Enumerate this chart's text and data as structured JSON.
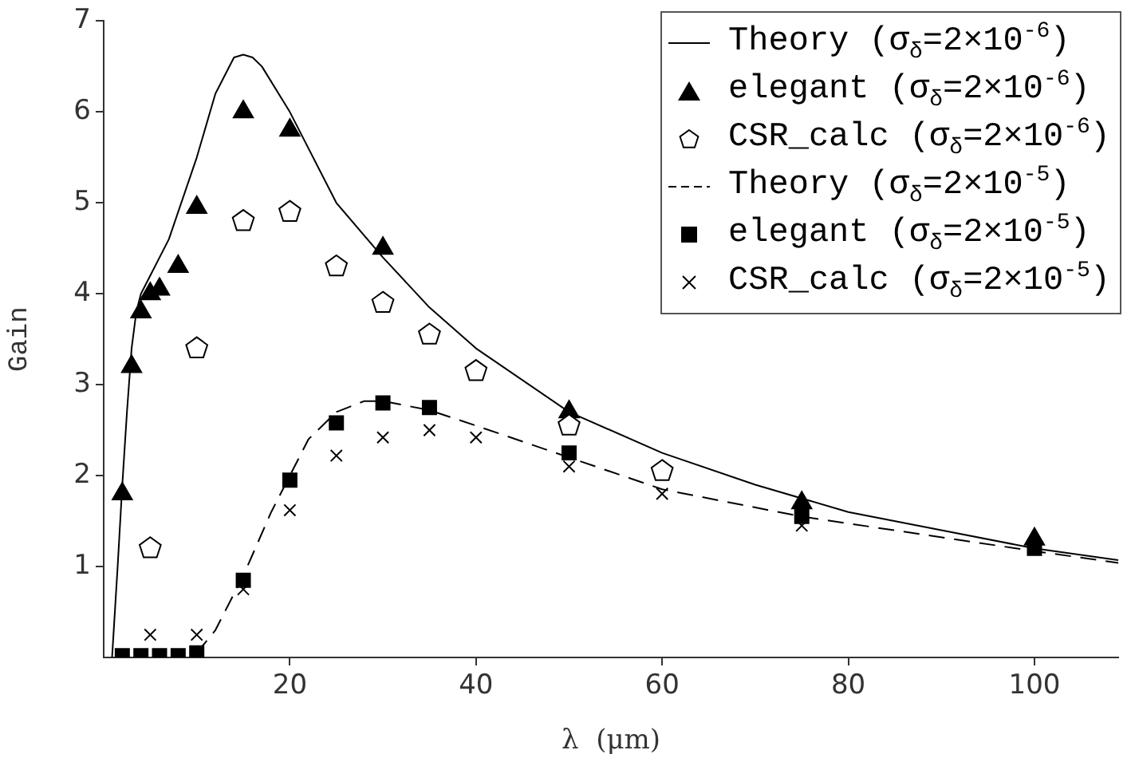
{
  "chart_data": {
    "type": "scatter",
    "xlabel": "λ  (μm)",
    "ylabel": "Gain",
    "xlim": [
      0,
      109
    ],
    "ylim": [
      0,
      7
    ],
    "xticks": [
      20,
      40,
      60,
      80,
      100
    ],
    "yticks": [
      1,
      2,
      3,
      4,
      5,
      6,
      7
    ],
    "grid": false,
    "legend": "top right",
    "series": [
      {
        "name": "Theory (σ$_{δ}$=2×10$^{-6}$)",
        "type": "line",
        "color": "#000000",
        "marker": "none",
        "line_style": "solid",
        "x": [
          0.9,
          1.5,
          2,
          2.5,
          3,
          3.5,
          4,
          5,
          7,
          10,
          12,
          14,
          15,
          16,
          17,
          20,
          25,
          30,
          35,
          40,
          50,
          60,
          70,
          80,
          90,
          100,
          109
        ],
        "values": [
          0,
          1,
          1.9,
          2.7,
          3.4,
          3.8,
          4.0,
          4.2,
          4.6,
          5.5,
          6.2,
          6.6,
          6.63,
          6.6,
          6.5,
          6.0,
          5.0,
          4.4,
          3.85,
          3.4,
          2.7,
          2.25,
          1.9,
          1.6,
          1.4,
          1.2,
          1.07
        ]
      },
      {
        "name": "elegant (σ$_{δ}$=2×10$^{-6}$)",
        "color": "#000000",
        "marker": "triangle",
        "x": [
          2,
          3,
          4,
          5,
          6,
          8,
          10,
          15,
          20,
          30,
          50,
          75,
          100
        ],
        "values": [
          1.8,
          3.2,
          3.8,
          4.0,
          4.05,
          4.3,
          4.95,
          6.0,
          5.8,
          4.5,
          2.7,
          1.7,
          1.3
        ]
      },
      {
        "name": "CSR_calc (σ$_{δ}$=2×10$^{-6}$)",
        "color": "#000000",
        "x": [
          5,
          10,
          15,
          20,
          25,
          30,
          35,
          40,
          50,
          60
        ],
        "values": [
          1.2,
          3.4,
          4.8,
          4.9,
          4.3,
          3.9,
          3.55,
          3.15,
          2.55,
          2.05
        ]
      },
      {
        "name": "Theory (σ$_{δ}$=2×10$^{-5}$)",
        "type": "line",
        "color": "#000000",
        "marker": "none",
        "line_style": "dashed",
        "x": [
          10,
          12,
          15,
          18,
          20,
          22,
          25,
          28,
          30,
          35,
          40,
          50,
          60,
          75,
          100,
          109
        ],
        "values": [
          0.05,
          0.3,
          0.9,
          1.6,
          2.0,
          2.4,
          2.7,
          2.82,
          2.82,
          2.72,
          2.55,
          2.2,
          1.85,
          1.55,
          1.17,
          1.04
        ]
      },
      {
        "name": "elegant (σ$_{δ}$=2×10$^{-5}$)",
        "color": "#000000",
        "marker": "square",
        "x": [
          2,
          4,
          6,
          8,
          10,
          15,
          20,
          25,
          30,
          35,
          50,
          75,
          100
        ],
        "values": [
          0.02,
          0.02,
          0.02,
          0.02,
          0.05,
          0.85,
          1.95,
          2.58,
          2.8,
          2.75,
          2.25,
          1.55,
          1.2
        ]
      },
      {
        "name": "CSR_calc (σ$_{δ}$=2×10$^{-5}$)",
        "color": "#000000",
        "marker": "cross",
        "x": [
          5,
          10,
          15,
          20,
          25,
          30,
          35,
          40,
          50,
          60,
          75
        ],
        "values": [
          0.25,
          0.25,
          0.75,
          1.62,
          2.22,
          2.42,
          2.5,
          2.42,
          2.1,
          1.8,
          1.45
        ]
      }
    ]
  }
}
